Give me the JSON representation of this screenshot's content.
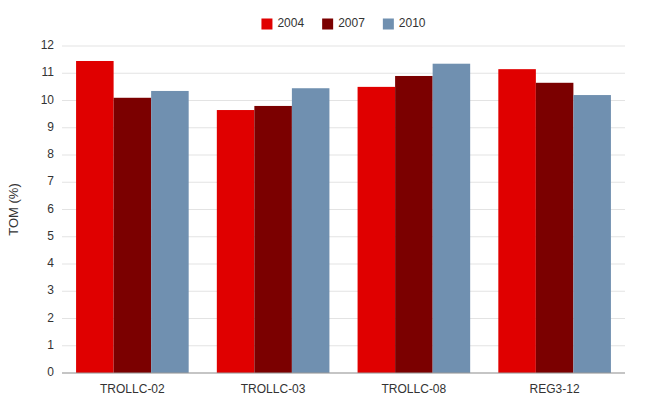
{
  "chart_data": {
    "type": "bar",
    "categories": [
      "TROLLC-02",
      "TROLLC-03",
      "TROLLC-08",
      "REG3-12"
    ],
    "series": [
      {
        "name": "2004",
        "color": "#e00000",
        "values": [
          11.45,
          9.65,
          10.5,
          11.15
        ]
      },
      {
        "name": "2007",
        "color": "#7b0000",
        "values": [
          10.1,
          9.8,
          10.9,
          10.65
        ]
      },
      {
        "name": "2010",
        "color": "#7090b0",
        "values": [
          10.35,
          10.45,
          11.35,
          10.2
        ]
      }
    ],
    "ylabel": "TOM (%)",
    "ylim": [
      0,
      12
    ],
    "yticks": [
      0,
      1,
      2,
      3,
      4,
      5,
      6,
      7,
      8,
      9,
      10,
      11,
      12
    ],
    "grid": true,
    "legend": "top"
  }
}
